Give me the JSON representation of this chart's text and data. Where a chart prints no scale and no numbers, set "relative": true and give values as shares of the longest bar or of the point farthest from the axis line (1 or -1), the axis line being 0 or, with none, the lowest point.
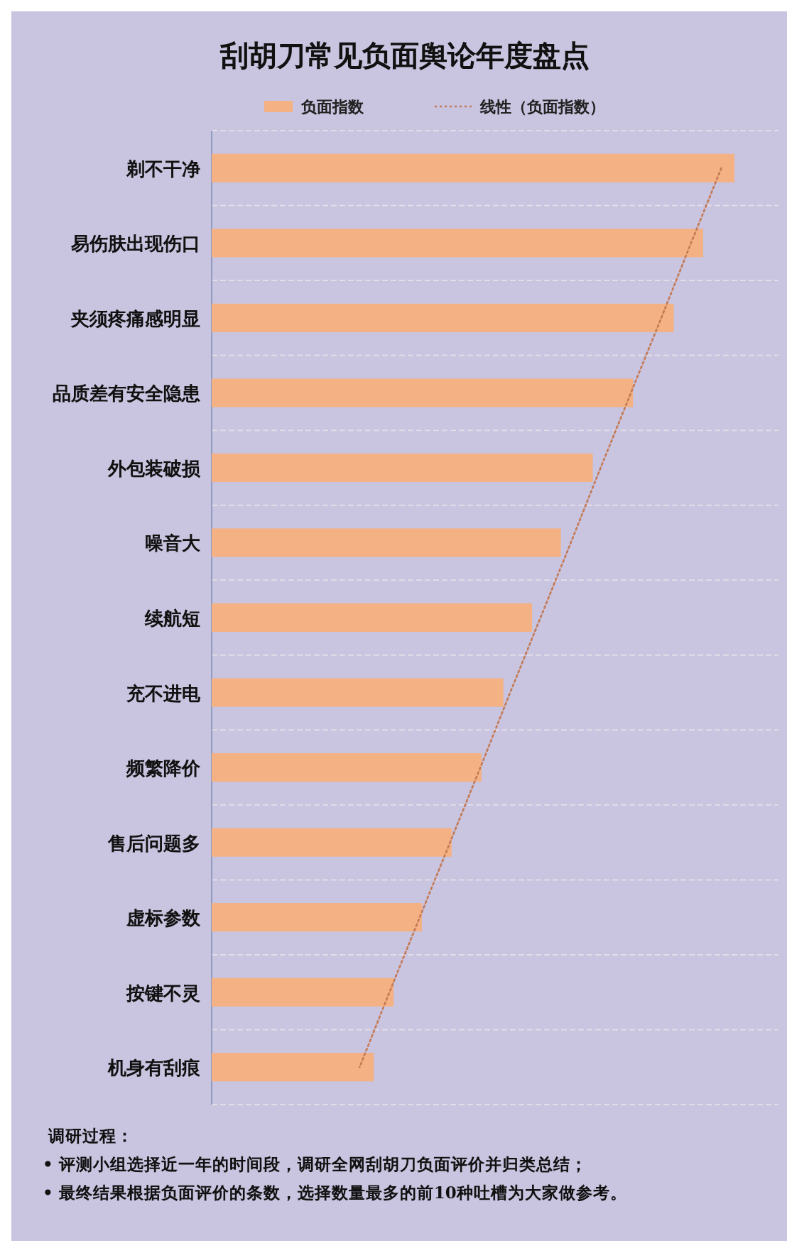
{
  "chart_data": {
    "type": "bar",
    "orientation": "horizontal",
    "relative": true,
    "title": "刮胡刀常见负面舆论年度盘点",
    "categories": [
      "剃不干净",
      "易伤肤出现伤口",
      "夹须疼痛感明显",
      "品质差有安全隐患",
      "外包装破损",
      "噪音大",
      "续航短",
      "充不进电",
      "频繁降价",
      "售后问题多",
      "虚标参数",
      "按键不灵",
      "机身有刮痕"
    ],
    "series": [
      {
        "name": "负面指数",
        "color": "#f4b183",
        "values": [
          1,
          0.94,
          0.884,
          0.806,
          0.729,
          0.668,
          0.613,
          0.558,
          0.516,
          0.459,
          0.402,
          0.348,
          0.31
        ]
      },
      {
        "name": "线性（负面指数）",
        "type": "line",
        "line_style": "dotted",
        "color": "#c47a55",
        "values": [
          0.975,
          0.917,
          0.86,
          0.802,
          0.744,
          0.687,
          0.629,
          0.571,
          0.514,
          0.456,
          0.398,
          0.34,
          0.283
        ]
      }
    ],
    "grid": "y",
    "legend": "top",
    "annotations": [
      "调研过程：",
      "• 评测小组选择近一年的时间段，调研全网刮胡刀负面评价并归类总结；",
      "• 最终结果根据负面评价的条数，选择数量最多的前10种吐槽为大家做参考。"
    ]
  }
}
